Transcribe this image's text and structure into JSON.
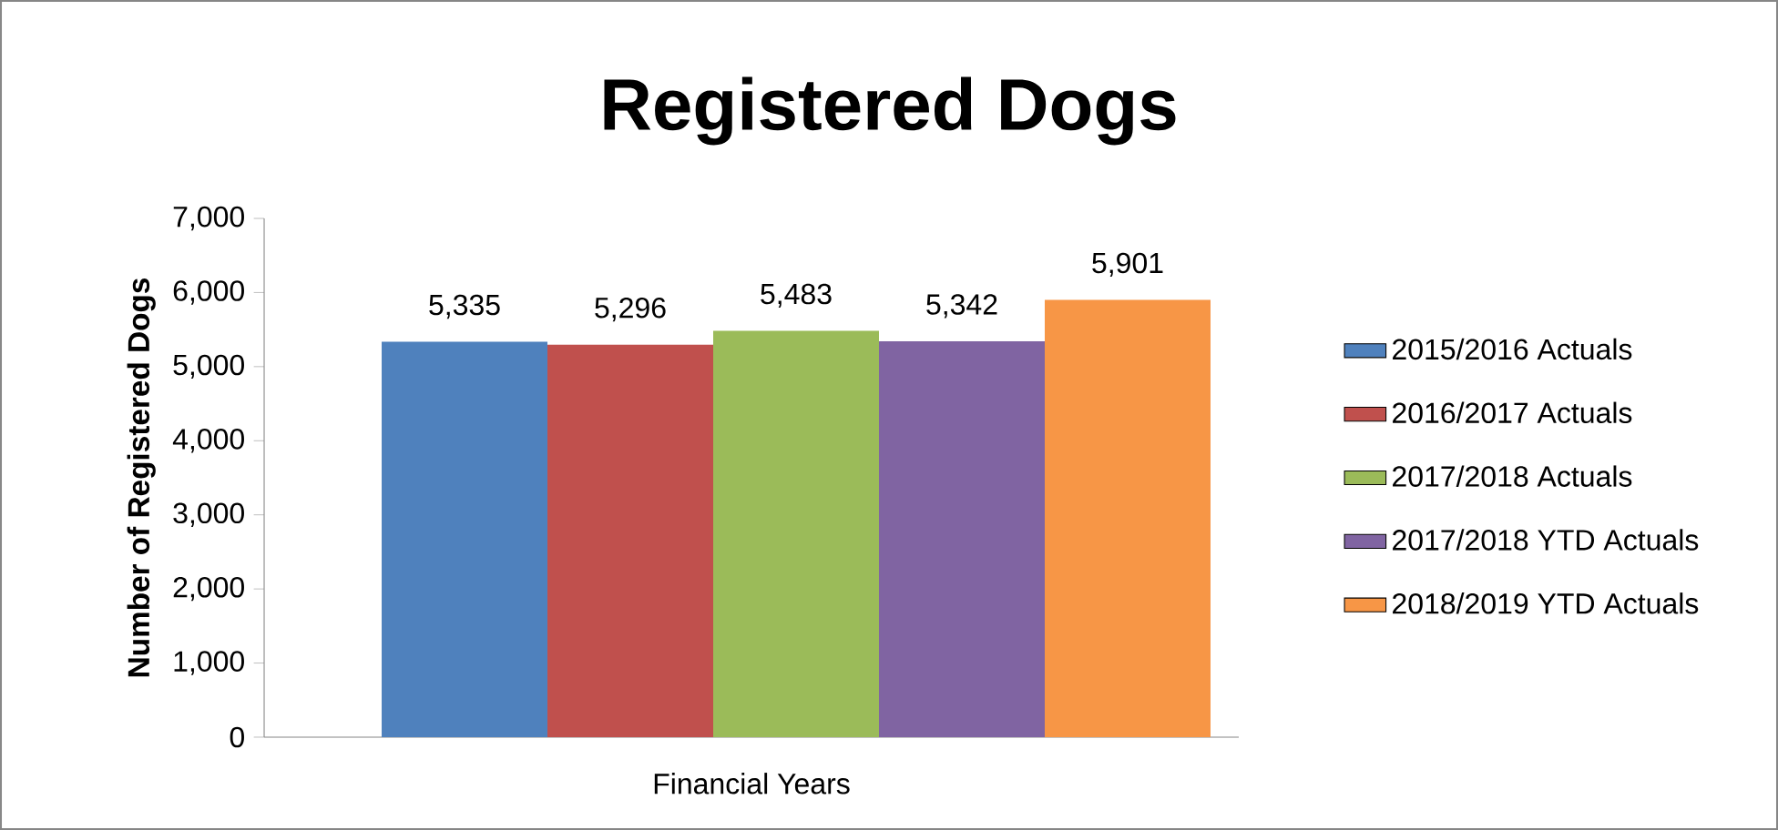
{
  "chart_data": {
    "type": "bar",
    "title": "Registered Dogs",
    "xlabel": "Financial Years",
    "ylabel": "Number of Registered Dogs",
    "categories": [
      null
    ],
    "series": [
      {
        "name": "2015/2016 Actuals",
        "color": "#4f81bd",
        "values": [
          5335
        ],
        "value_labels": [
          "5,335"
        ]
      },
      {
        "name": "2016/2017 Actuals",
        "color": "#c0504d",
        "values": [
          5296
        ],
        "value_labels": [
          "5,296"
        ]
      },
      {
        "name": "2017/2018 Actuals",
        "color": "#9bbb59",
        "values": [
          5483
        ],
        "value_labels": [
          "5,483"
        ]
      },
      {
        "name": "2017/2018 YTD Actuals",
        "color": "#8064a2",
        "values": [
          5342
        ],
        "value_labels": [
          "5,342"
        ]
      },
      {
        "name": "2018/2019 YTD Actuals",
        "color": "#f79646",
        "values": [
          5901
        ],
        "value_labels": [
          "5,901"
        ]
      }
    ],
    "ylim": [
      0,
      7000
    ],
    "yticks": [
      0,
      {
        "value": 1000,
        "label": "1,000"
      },
      {
        "value": 2000,
        "label": "2,000"
      },
      {
        "value": 3000,
        "label": "3,000"
      },
      {
        "value": 4000,
        "label": "4,000"
      },
      {
        "value": 5000,
        "label": "5,000"
      },
      {
        "value": 6000,
        "label": "6,000"
      },
      {
        "value": 7000,
        "label": "7,000"
      }
    ],
    "legend": "right",
    "grid": false
  }
}
